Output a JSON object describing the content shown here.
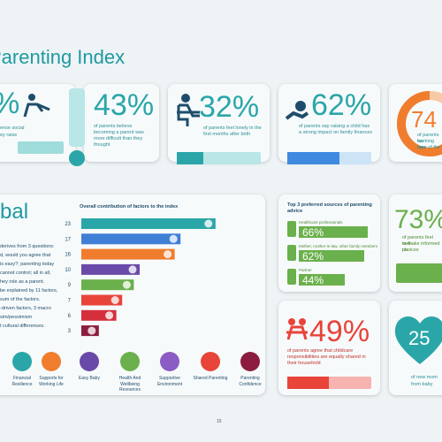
{
  "title": "Parenting Index",
  "cards": [
    {
      "stat": "%",
      "lines": [
        "ense social",
        "ey raise"
      ]
    },
    {
      "stat": "43%",
      "text": "of parents believe becoming a parent was more difficult than they thought"
    },
    {
      "stat": "32%",
      "text": "of parents feel lonely in the first months after birth"
    },
    {
      "stat": "62%",
      "text": "of parents say raising a child has a strong impact on family finances"
    },
    {
      "stat": "74",
      "lines": [
        "of parents ha",
        "working hou",
        "care of the"
      ]
    }
  ],
  "global": {
    "heading": "bal",
    "lines": [
      "derives from 3 questions:",
      "d, would you agree that",
      "is easy?; parenting today",
      "cannot control; all in all,",
      "hey role as a parent.",
      "be explained by 11 factors,",
      "sum of the factors.",
      "-driven factors, 3 macro",
      "sim/pessimism",
      "t cultural differences."
    ]
  },
  "chart_data": {
    "type": "bar",
    "title": "Overall contribution of factors to the index",
    "values": [
      23,
      17,
      16,
      10,
      9,
      7,
      6,
      3
    ],
    "colors": [
      "#2aa6a8",
      "#3f7fd6",
      "#f07d2e",
      "#6a4aa8",
      "#6ab04c",
      "#e8443a",
      "#d62f3c",
      "#8c1d3e"
    ]
  },
  "factors": [
    {
      "label": "Financial Resilience",
      "color": "#2aa6a8"
    },
    {
      "label": "Supports for Working Life",
      "color": "#f07d2e"
    },
    {
      "label": "Easy Baby",
      "color": "#6a4aa8"
    },
    {
      "label": "Health And Wellbeing Resources",
      "color": "#6ab04c"
    },
    {
      "label": "Supportive Environment",
      "color": "#8a5cc4"
    },
    {
      "label": "Shared Parenting",
      "color": "#e8443a"
    },
    {
      "label": "Parenting Confidence",
      "color": "#8c1d3e"
    }
  ],
  "sources": {
    "title": "Top 3 preferred sources of parenting advice",
    "items": [
      {
        "label": "Healthcare professionals",
        "stat": "66%"
      },
      {
        "label": "Mother, mother-in-law, other family members",
        "stat": "62%"
      },
      {
        "label": "Partner",
        "stat": "44%"
      }
    ]
  },
  "informed": {
    "stat": "73%",
    "lines": [
      "of parents feel well-",
      "to make informed pa",
      "choices"
    ]
  },
  "shared": {
    "stat": "49%",
    "text": "of parents agree that childcare responsibilities are equally shared in their household"
  },
  "moms": {
    "stat": "25",
    "lines": [
      "of new mom",
      "from baby"
    ]
  },
  "page_number": "15"
}
